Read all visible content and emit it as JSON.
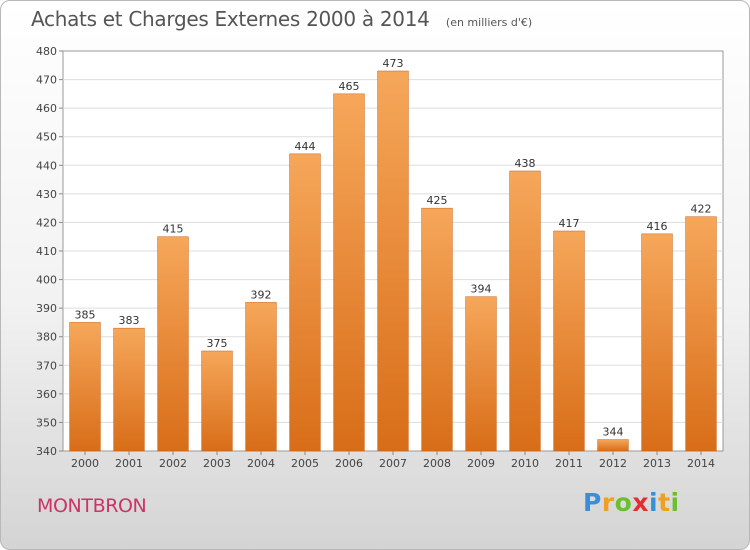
{
  "title": "Achats et Charges Externes 2000 à 2014",
  "unit_note": "(en milliers d'€)",
  "commune": "MONTBRON",
  "logo": {
    "text": "Proxiti",
    "letters": [
      {
        "ch": "P",
        "color": "#3a8ed8"
      },
      {
        "ch": "r",
        "color": "#f0a020"
      },
      {
        "ch": "o",
        "color": "#6cc030"
      },
      {
        "ch": "x",
        "color": "#e03030"
      },
      {
        "ch": "i",
        "color": "#3a8ed8"
      },
      {
        "ch": "t",
        "color": "#f0a020"
      },
      {
        "ch": "i",
        "color": "#6cc030"
      }
    ]
  },
  "colors": {
    "bar_top": "#f6a75a",
    "bar_bottom": "#d86d18",
    "commune": "#cc3366",
    "grid": "#dddddd"
  },
  "chart_data": {
    "type": "bar",
    "title": "Achats et Charges Externes 2000 à 2014",
    "categories": [
      "2000",
      "2001",
      "2002",
      "2003",
      "2004",
      "2005",
      "2006",
      "2007",
      "2008",
      "2009",
      "2010",
      "2011",
      "2012",
      "2013",
      "2014"
    ],
    "values": [
      385,
      383,
      415,
      375,
      392,
      444,
      465,
      473,
      425,
      394,
      438,
      417,
      344,
      416,
      422
    ],
    "ylim": [
      340,
      480
    ],
    "yticks": [
      340,
      350,
      360,
      370,
      380,
      390,
      400,
      410,
      420,
      430,
      440,
      450,
      460,
      470,
      480
    ],
    "grid": true,
    "xlabel": "",
    "ylabel": ""
  }
}
